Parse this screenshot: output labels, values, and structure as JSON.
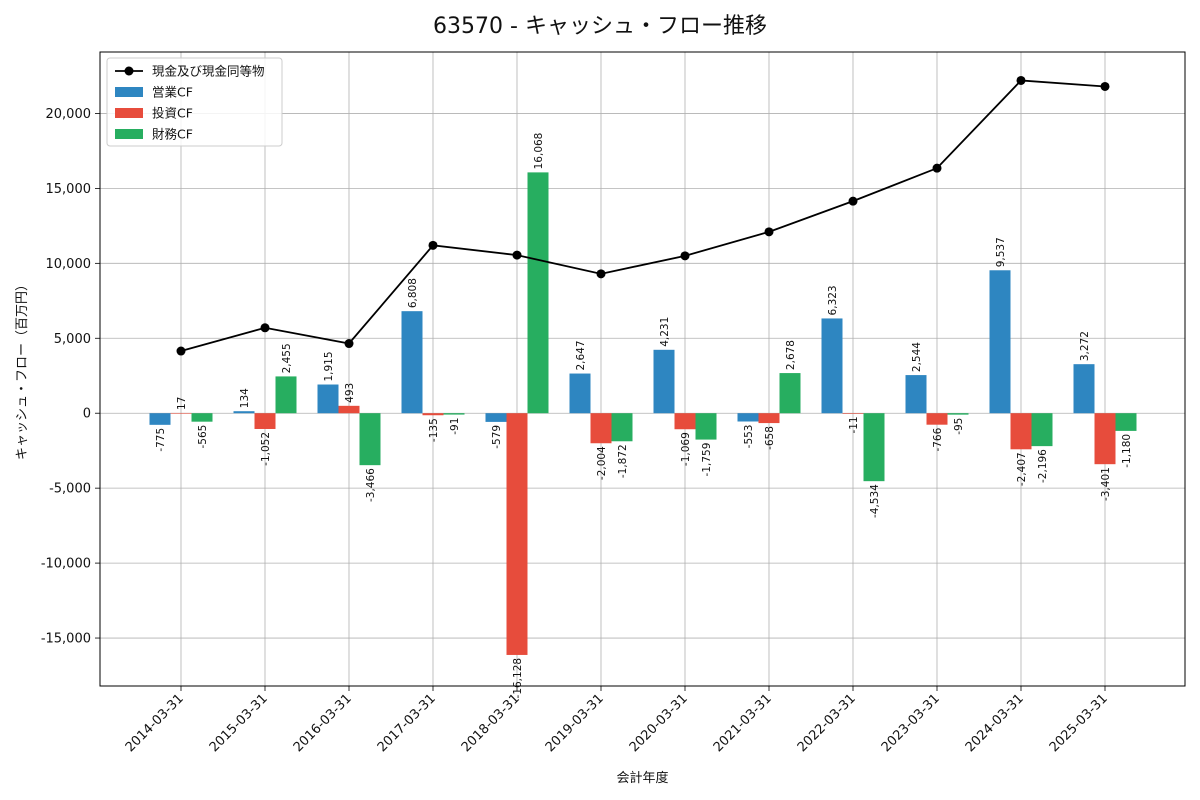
{
  "chart_data": {
    "type": "bar",
    "title": "63570 - キャッシュ・フロー推移",
    "xlabel": "会計年度",
    "ylabel": "キャッシュ・フロー（百万円）",
    "categories": [
      "2014-03-31",
      "2015-03-31",
      "2016-03-31",
      "2017-03-31",
      "2018-03-31",
      "2019-03-31",
      "2020-03-31",
      "2021-03-31",
      "2022-03-31",
      "2023-03-31",
      "2024-03-31",
      "2025-03-31"
    ],
    "ylim": [
      -18200,
      24100
    ],
    "yticks": [
      -15000,
      -10000,
      -5000,
      0,
      5000,
      10000,
      15000,
      20000
    ],
    "ytick_labels": [
      "-15,000",
      "-10,000",
      "-5,000",
      "0",
      "5,000",
      "10,000",
      "15,000",
      "20,000"
    ],
    "grid": true,
    "legend_position": "top-left",
    "series": [
      {
        "name": "営業CF",
        "kind": "bar",
        "color": "#2e86c1",
        "values": [
          -775,
          134,
          1915,
          6808,
          -579,
          2647,
          4231,
          -553,
          6323,
          2544,
          9537,
          3272
        ],
        "labels": [
          "-775",
          "134",
          "1,915",
          "6,808",
          "-579",
          "2,647",
          "4,231",
          "-553",
          "6,323",
          "2,544",
          "9,537",
          "3,272"
        ]
      },
      {
        "name": "投資CF",
        "kind": "bar",
        "color": "#e74c3c",
        "values": [
          17,
          -1052,
          493,
          -135,
          -16128,
          -2004,
          -1069,
          -658,
          -11,
          -766,
          -2407,
          -3401
        ],
        "labels": [
          "17",
          "-1,052",
          "493",
          "-135",
          "-16,128",
          "-2,004",
          "-1,069",
          "-658",
          "-11",
          "-766",
          "-2,407",
          "-3,401"
        ]
      },
      {
        "name": "財務CF",
        "kind": "bar",
        "color": "#27ae60",
        "values": [
          -565,
          2455,
          -3466,
          -91,
          16068,
          -1872,
          -1759,
          2678,
          -4534,
          -95,
          -2196,
          -1180
        ],
        "labels": [
          "-565",
          "2,455",
          "-3,466",
          "-91",
          "16,068",
          "-1,872",
          "-1,759",
          "2,678",
          "-4,534",
          "-95",
          "-2,196",
          "-1,180"
        ]
      },
      {
        "name": "現金及び現金同等物",
        "kind": "line",
        "color": "#000000",
        "values": [
          4150,
          5700,
          4650,
          11200,
          10550,
          9300,
          10500,
          12100,
          14150,
          16350,
          22200,
          21800
        ]
      }
    ]
  }
}
